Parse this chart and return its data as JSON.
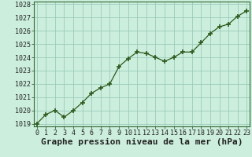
{
  "x": [
    0,
    1,
    2,
    3,
    4,
    5,
    6,
    7,
    8,
    9,
    10,
    11,
    12,
    13,
    14,
    15,
    16,
    17,
    18,
    19,
    20,
    21,
    22,
    23
  ],
  "y": [
    1019.0,
    1019.7,
    1020.0,
    1019.5,
    1020.0,
    1020.6,
    1021.3,
    1021.7,
    1022.0,
    1023.3,
    1023.9,
    1024.4,
    1024.3,
    1024.0,
    1023.7,
    1024.0,
    1024.4,
    1024.4,
    1025.1,
    1025.8,
    1026.3,
    1026.5,
    1027.1,
    1027.5
  ],
  "ylim": [
    1018.8,
    1028.2
  ],
  "yticks": [
    1019,
    1020,
    1021,
    1022,
    1023,
    1024,
    1025,
    1026,
    1027,
    1028
  ],
  "xticks": [
    0,
    1,
    2,
    3,
    4,
    5,
    6,
    7,
    8,
    9,
    10,
    11,
    12,
    13,
    14,
    15,
    16,
    17,
    18,
    19,
    20,
    21,
    22,
    23
  ],
  "xlabel": "Graphe pression niveau de la mer (hPa)",
  "line_color": "#2d5a1b",
  "marker": "+",
  "marker_size": 5,
  "background_color": "#cceedd",
  "grid_color": "#99ccbb",
  "tick_label_fontsize": 6.0,
  "xlabel_fontsize": 8.0,
  "border_color": "#336633"
}
